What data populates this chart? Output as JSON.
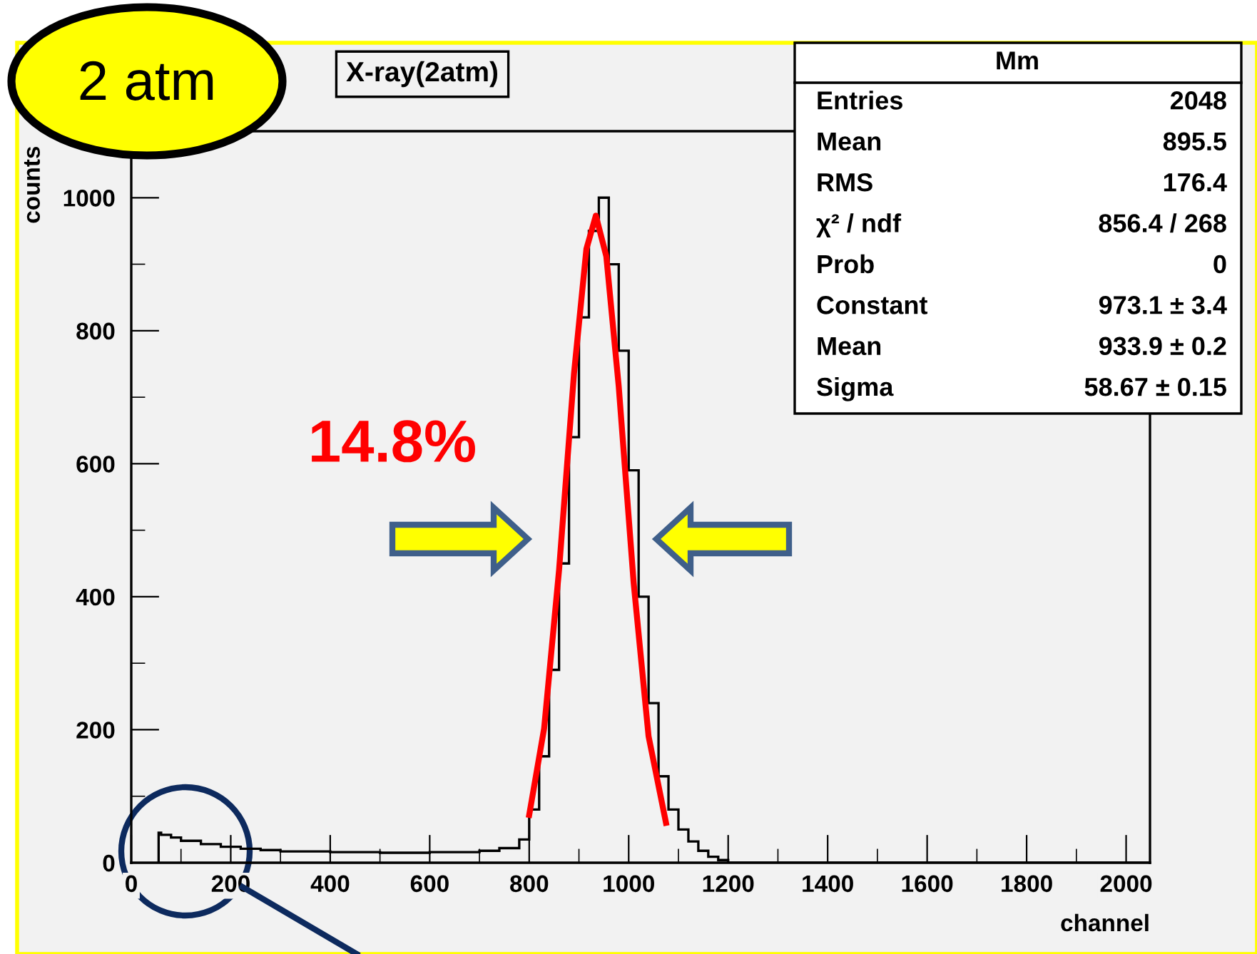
{
  "chart_data": {
    "type": "histogram",
    "title": "X-ray(2atm)",
    "xlabel": "channel",
    "ylabel": "counts",
    "xlim": [
      0,
      2048
    ],
    "ylim": [
      0,
      1100
    ],
    "xticks": [
      0,
      {
        "value": 100,
        "label": null
      },
      200,
      {
        "value": 300,
        "label": null
      },
      400,
      {
        "value": 500,
        "label": null
      },
      600,
      {
        "value": 700,
        "label": null
      },
      800,
      {
        "value": 900,
        "label": null
      },
      1000,
      {
        "value": 1100,
        "label": null
      },
      1200,
      {
        "value": 1300,
        "label": null
      },
      1400,
      {
        "value": 1500,
        "label": null
      },
      1600,
      {
        "value": 1700,
        "label": null
      },
      1800,
      {
        "value": 1900,
        "label": null
      },
      2000
    ],
    "yticks": [
      0,
      {
        "value": 100,
        "label": null
      },
      200,
      {
        "value": 300,
        "label": null
      },
      400,
      {
        "value": 500,
        "label": null
      },
      600,
      {
        "value": 700,
        "label": null
      },
      800,
      {
        "value": 900,
        "label": null
      },
      1000
    ],
    "grid": false,
    "series": [
      {
        "color": "#000000",
        "bins": [
          55,
          60,
          80,
          100,
          140,
          180,
          220,
          260,
          300,
          400,
          500,
          600,
          700,
          740,
          780,
          800,
          820,
          840,
          860,
          880,
          900,
          920,
          940,
          960,
          980,
          1000,
          1020,
          1040,
          1060,
          1080,
          1100,
          1120,
          1140,
          1160,
          1180,
          1200,
          2048
        ],
        "values": [
          45,
          42,
          38,
          33,
          28,
          24,
          21,
          19,
          17,
          16,
          15,
          16,
          18,
          22,
          35,
          80,
          160,
          290,
          450,
          640,
          820,
          950,
          1000,
          900,
          770,
          590,
          400,
          240,
          130,
          80,
          50,
          32,
          18,
          9,
          4,
          0
        ]
      },
      {
        "type": "line",
        "color": "#ff0000",
        "x": [
          800,
          830,
          860,
          890,
          915,
          934,
          955,
          980,
          1010,
          1040,
          1075
        ],
        "values": [
          72,
          202,
          440,
          735,
          923,
          973,
          912,
          716,
          421,
          190,
          60
        ]
      }
    ],
    "annotations": [
      "2 atm",
      "14.8%",
      "Mm",
      "Entries",
      "2048",
      "Mean",
      "895.5",
      "RMS",
      "176.4",
      "χ² / ndf",
      "856.4 / 268",
      "Prob",
      "0",
      "Constant",
      "973.1 ± 3.4",
      "Mean",
      "933.9 ± 0.2",
      "Sigma",
      "58.67 ± 0.15"
    ]
  }
}
